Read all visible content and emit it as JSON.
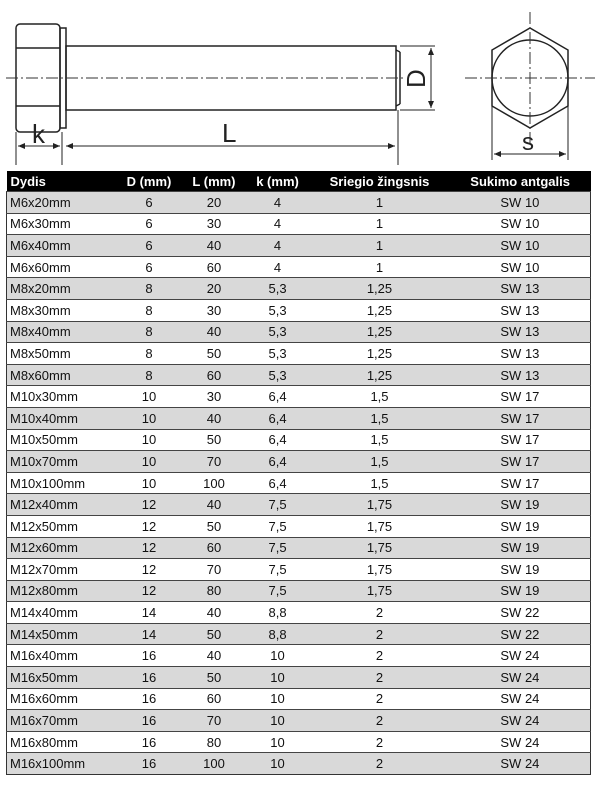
{
  "drawing": {
    "labels": {
      "k": "k",
      "L": "L",
      "D": "D",
      "s": "s"
    }
  },
  "table": {
    "headers": [
      "Dydis",
      "D (mm)",
      "L (mm)",
      "k (mm)",
      "Sriegio žingsnis",
      "Sukimo antgalis"
    ],
    "rows": [
      [
        "M6x20mm",
        "6",
        "20",
        "4",
        "1",
        "SW 10"
      ],
      [
        "M6x30mm",
        "6",
        "30",
        "4",
        "1",
        "SW 10"
      ],
      [
        "M6x40mm",
        "6",
        "40",
        "4",
        "1",
        "SW 10"
      ],
      [
        "M6x60mm",
        "6",
        "60",
        "4",
        "1",
        "SW 10"
      ],
      [
        "M8x20mm",
        "8",
        "20",
        "5,3",
        "1,25",
        "SW 13"
      ],
      [
        "M8x30mm",
        "8",
        "30",
        "5,3",
        "1,25",
        "SW 13"
      ],
      [
        "M8x40mm",
        "8",
        "40",
        "5,3",
        "1,25",
        "SW 13"
      ],
      [
        "M8x50mm",
        "8",
        "50",
        "5,3",
        "1,25",
        "SW 13"
      ],
      [
        "M8x60mm",
        "8",
        "60",
        "5,3",
        "1,25",
        "SW 13"
      ],
      [
        "M10x30mm",
        "10",
        "30",
        "6,4",
        "1,5",
        "SW 17"
      ],
      [
        "M10x40mm",
        "10",
        "40",
        "6,4",
        "1,5",
        "SW 17"
      ],
      [
        "M10x50mm",
        "10",
        "50",
        "6,4",
        "1,5",
        "SW 17"
      ],
      [
        "M10x70mm",
        "10",
        "70",
        "6,4",
        "1,5",
        "SW 17"
      ],
      [
        "M10x100mm",
        "10",
        "100",
        "6,4",
        "1,5",
        "SW 17"
      ],
      [
        "M12x40mm",
        "12",
        "40",
        "7,5",
        "1,75",
        "SW 19"
      ],
      [
        "M12x50mm",
        "12",
        "50",
        "7,5",
        "1,75",
        "SW 19"
      ],
      [
        "M12x60mm",
        "12",
        "60",
        "7,5",
        "1,75",
        "SW 19"
      ],
      [
        "M12x70mm",
        "12",
        "70",
        "7,5",
        "1,75",
        "SW 19"
      ],
      [
        "M12x80mm",
        "12",
        "80",
        "7,5",
        "1,75",
        "SW 19"
      ],
      [
        "M14x40mm",
        "14",
        "40",
        "8,8",
        "2",
        "SW 22"
      ],
      [
        "M14x50mm",
        "14",
        "50",
        "8,8",
        "2",
        "SW 22"
      ],
      [
        "M16x40mm",
        "16",
        "40",
        "10",
        "2",
        "SW 24"
      ],
      [
        "M16x50mm",
        "16",
        "50",
        "10",
        "2",
        "SW 24"
      ],
      [
        "M16x60mm",
        "16",
        "60",
        "10",
        "2",
        "SW 24"
      ],
      [
        "M16x70mm",
        "16",
        "70",
        "10",
        "2",
        "SW 24"
      ],
      [
        "M16x80mm",
        "16",
        "80",
        "10",
        "2",
        "SW 24"
      ],
      [
        "M16x100mm",
        "16",
        "100",
        "10",
        "2",
        "SW 24"
      ]
    ]
  }
}
